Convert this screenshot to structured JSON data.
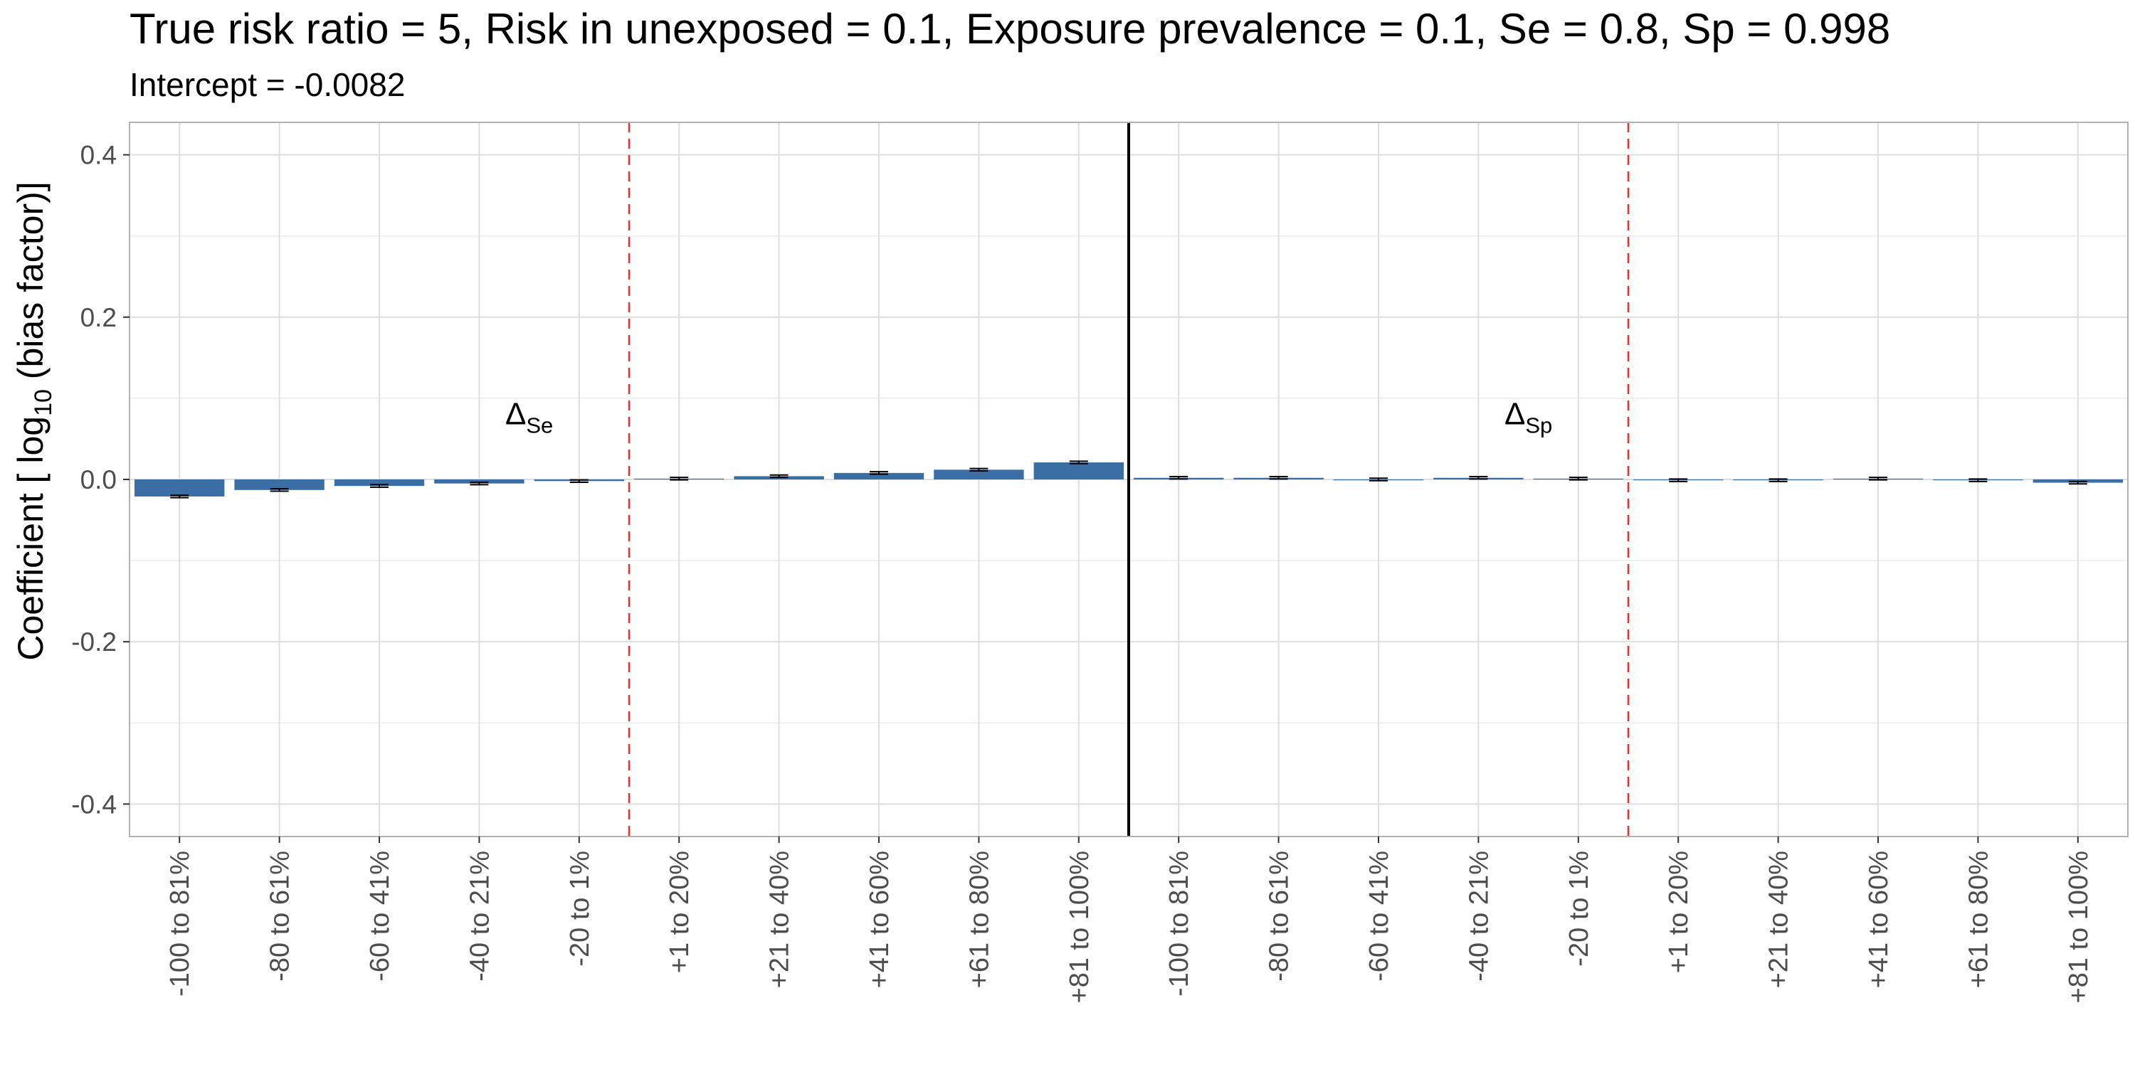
{
  "chart_data": {
    "type": "bar",
    "title": "True risk ratio = 5, Risk in unexposed = 0.1, Exposure prevalence = 0.1, Se = 0.8, Sp = 0.998",
    "subtitle": "Intercept = -0.0082",
    "ylabel": "Coefficient [ log10 (bias factor)]",
    "ylabel_parts": {
      "pre": "Coefficient [ log",
      "sub": "10",
      "post": " (bias factor)]"
    },
    "xlabel": "",
    "ylim": [
      -0.44,
      0.44
    ],
    "yticks": [
      0.4,
      0.2,
      0.0,
      -0.2,
      -0.4
    ],
    "ytick_labels": [
      "0.4",
      "0.2",
      "0.0",
      "-0.2",
      "-0.4"
    ],
    "grid": true,
    "bar_color": "#3a6ea5",
    "errorbar_color": "#000000",
    "separator_color": "#000000",
    "divider_color": "#e8312f",
    "categories": [
      "-100 to 81%",
      "-80 to 61%",
      "-60 to 41%",
      "-40 to 21%",
      "-20 to 1%",
      "+1 to 20%",
      "+21 to 40%",
      "+41 to 60%",
      "+61 to 80%",
      "+81 to 100%",
      "-100 to 81%",
      "-80 to 61%",
      "-60 to 41%",
      "-40 to 21%",
      "-20 to 1%",
      "+1 to 20%",
      "+21 to 40%",
      "+41 to 60%",
      "+61 to 80%",
      "+81 to 100%"
    ],
    "values": [
      -0.021,
      -0.013,
      -0.008,
      -0.005,
      -0.002,
      0.001,
      0.004,
      0.008,
      0.012,
      0.021,
      0.002,
      0.002,
      0.0,
      0.002,
      0.001,
      -0.001,
      -0.001,
      0.001,
      -0.001,
      -0.004
    ],
    "errors": [
      0.0015,
      0.0015,
      0.0015,
      0.0015,
      0.0015,
      0.0015,
      0.0015,
      0.0015,
      0.0015,
      0.0015,
      0.0015,
      0.0015,
      0.0015,
      0.0015,
      0.0015,
      0.0015,
      0.0015,
      0.0015,
      0.0015,
      0.0015
    ],
    "annotations": [
      {
        "symbol": "Δ",
        "sub": "Se",
        "x_index": 3.5,
        "y": 0.08
      },
      {
        "symbol": "Δ",
        "sub": "Sp",
        "x_index": 13.5,
        "y": 0.08
      }
    ]
  }
}
